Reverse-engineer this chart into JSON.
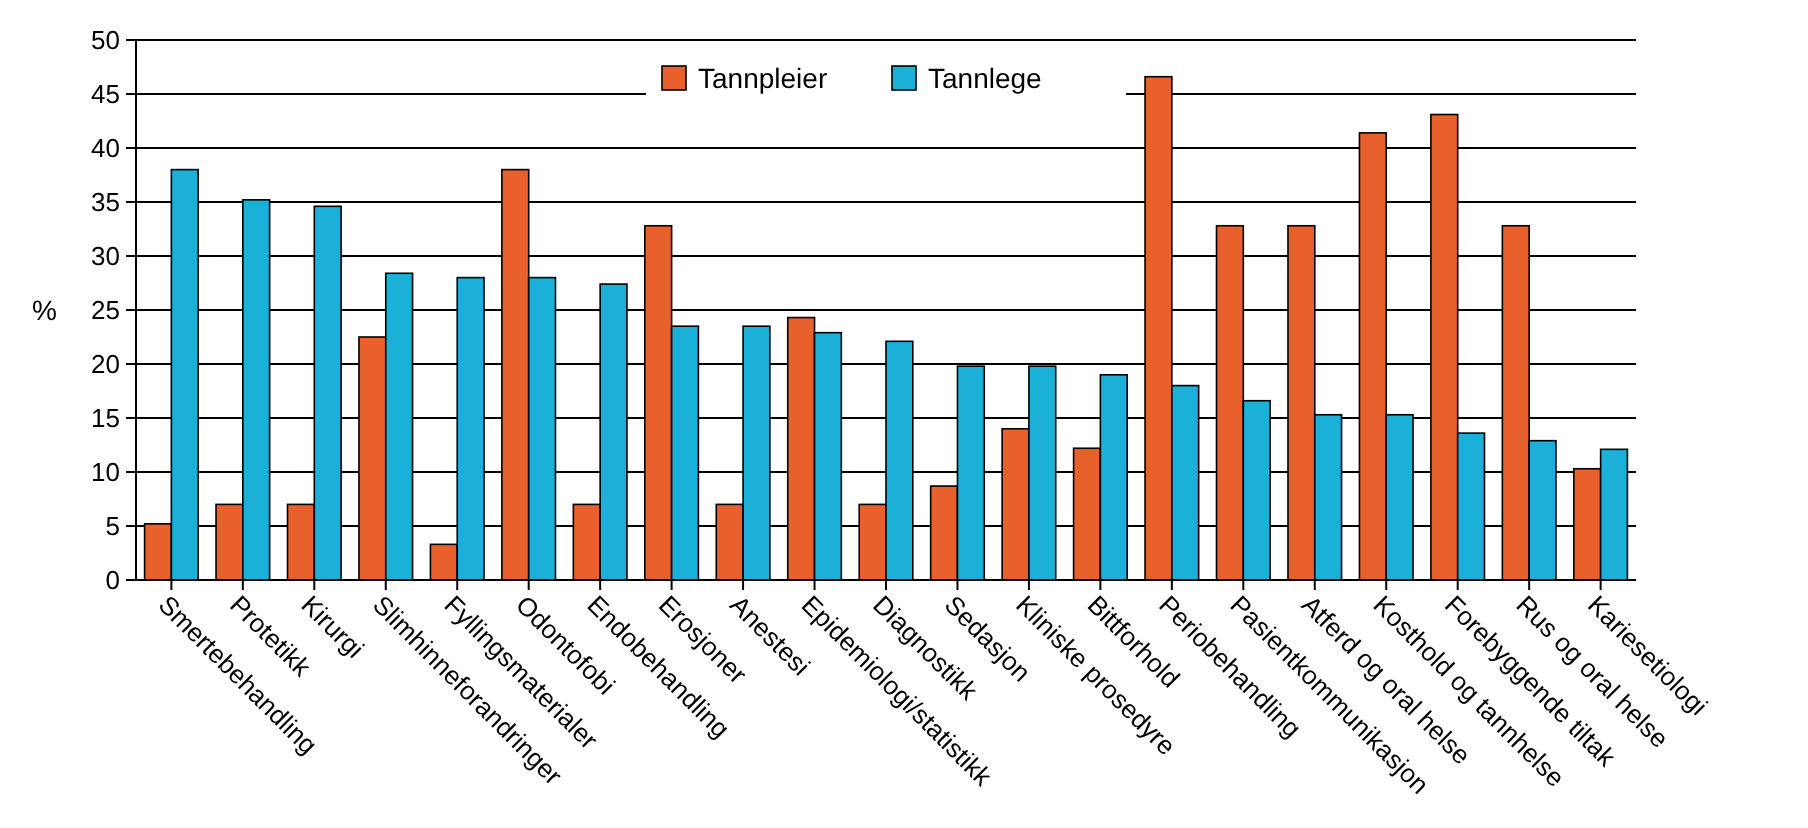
{
  "chart_data": {
    "type": "bar",
    "ylabel": "%",
    "categories": [
      "Smertebehandling",
      "Protetikk",
      "Kirurgi",
      "Slimhinneforandringer",
      "Fyllingsmaterialer",
      "Odontofobi",
      "Endobehandling",
      "Erosjoner",
      "Anestesi",
      "Epidemiologi/statistikk",
      "Diagnostikk",
      "Sedasjon",
      "Kliniske prosedyre",
      "Bittforhold",
      "Periobehandling",
      "Pasientkommunikasjon",
      "Atferd og oral helse",
      "Kosthold og tannhelse",
      "Forebyggende tiltak",
      "Rus og oral helse",
      "Kariesetiologi"
    ],
    "series": [
      {
        "name": "Tannpleier",
        "color": "#e8602c",
        "values": [
          5.2,
          7,
          7,
          22.5,
          3.3,
          38,
          7,
          32.8,
          7,
          24.3,
          7,
          8.7,
          14,
          12.2,
          46.6,
          32.8,
          32.8,
          41.4,
          43.1,
          32.8,
          10.3
        ]
      },
      {
        "name": "Tannlege",
        "color": "#1ab0d8",
        "values": [
          38,
          35.2,
          34.6,
          28.4,
          28,
          28,
          27.4,
          23.5,
          23.5,
          22.9,
          22.1,
          19.8,
          19.8,
          19,
          18,
          16.6,
          15.3,
          15.3,
          13.6,
          12.9,
          12.1
        ]
      }
    ],
    "ylim": [
      0,
      50
    ],
    "yticks": [
      0,
      5,
      10,
      15,
      20,
      25,
      30,
      35,
      40,
      45,
      50
    ],
    "grid": "y",
    "legend": "top"
  }
}
